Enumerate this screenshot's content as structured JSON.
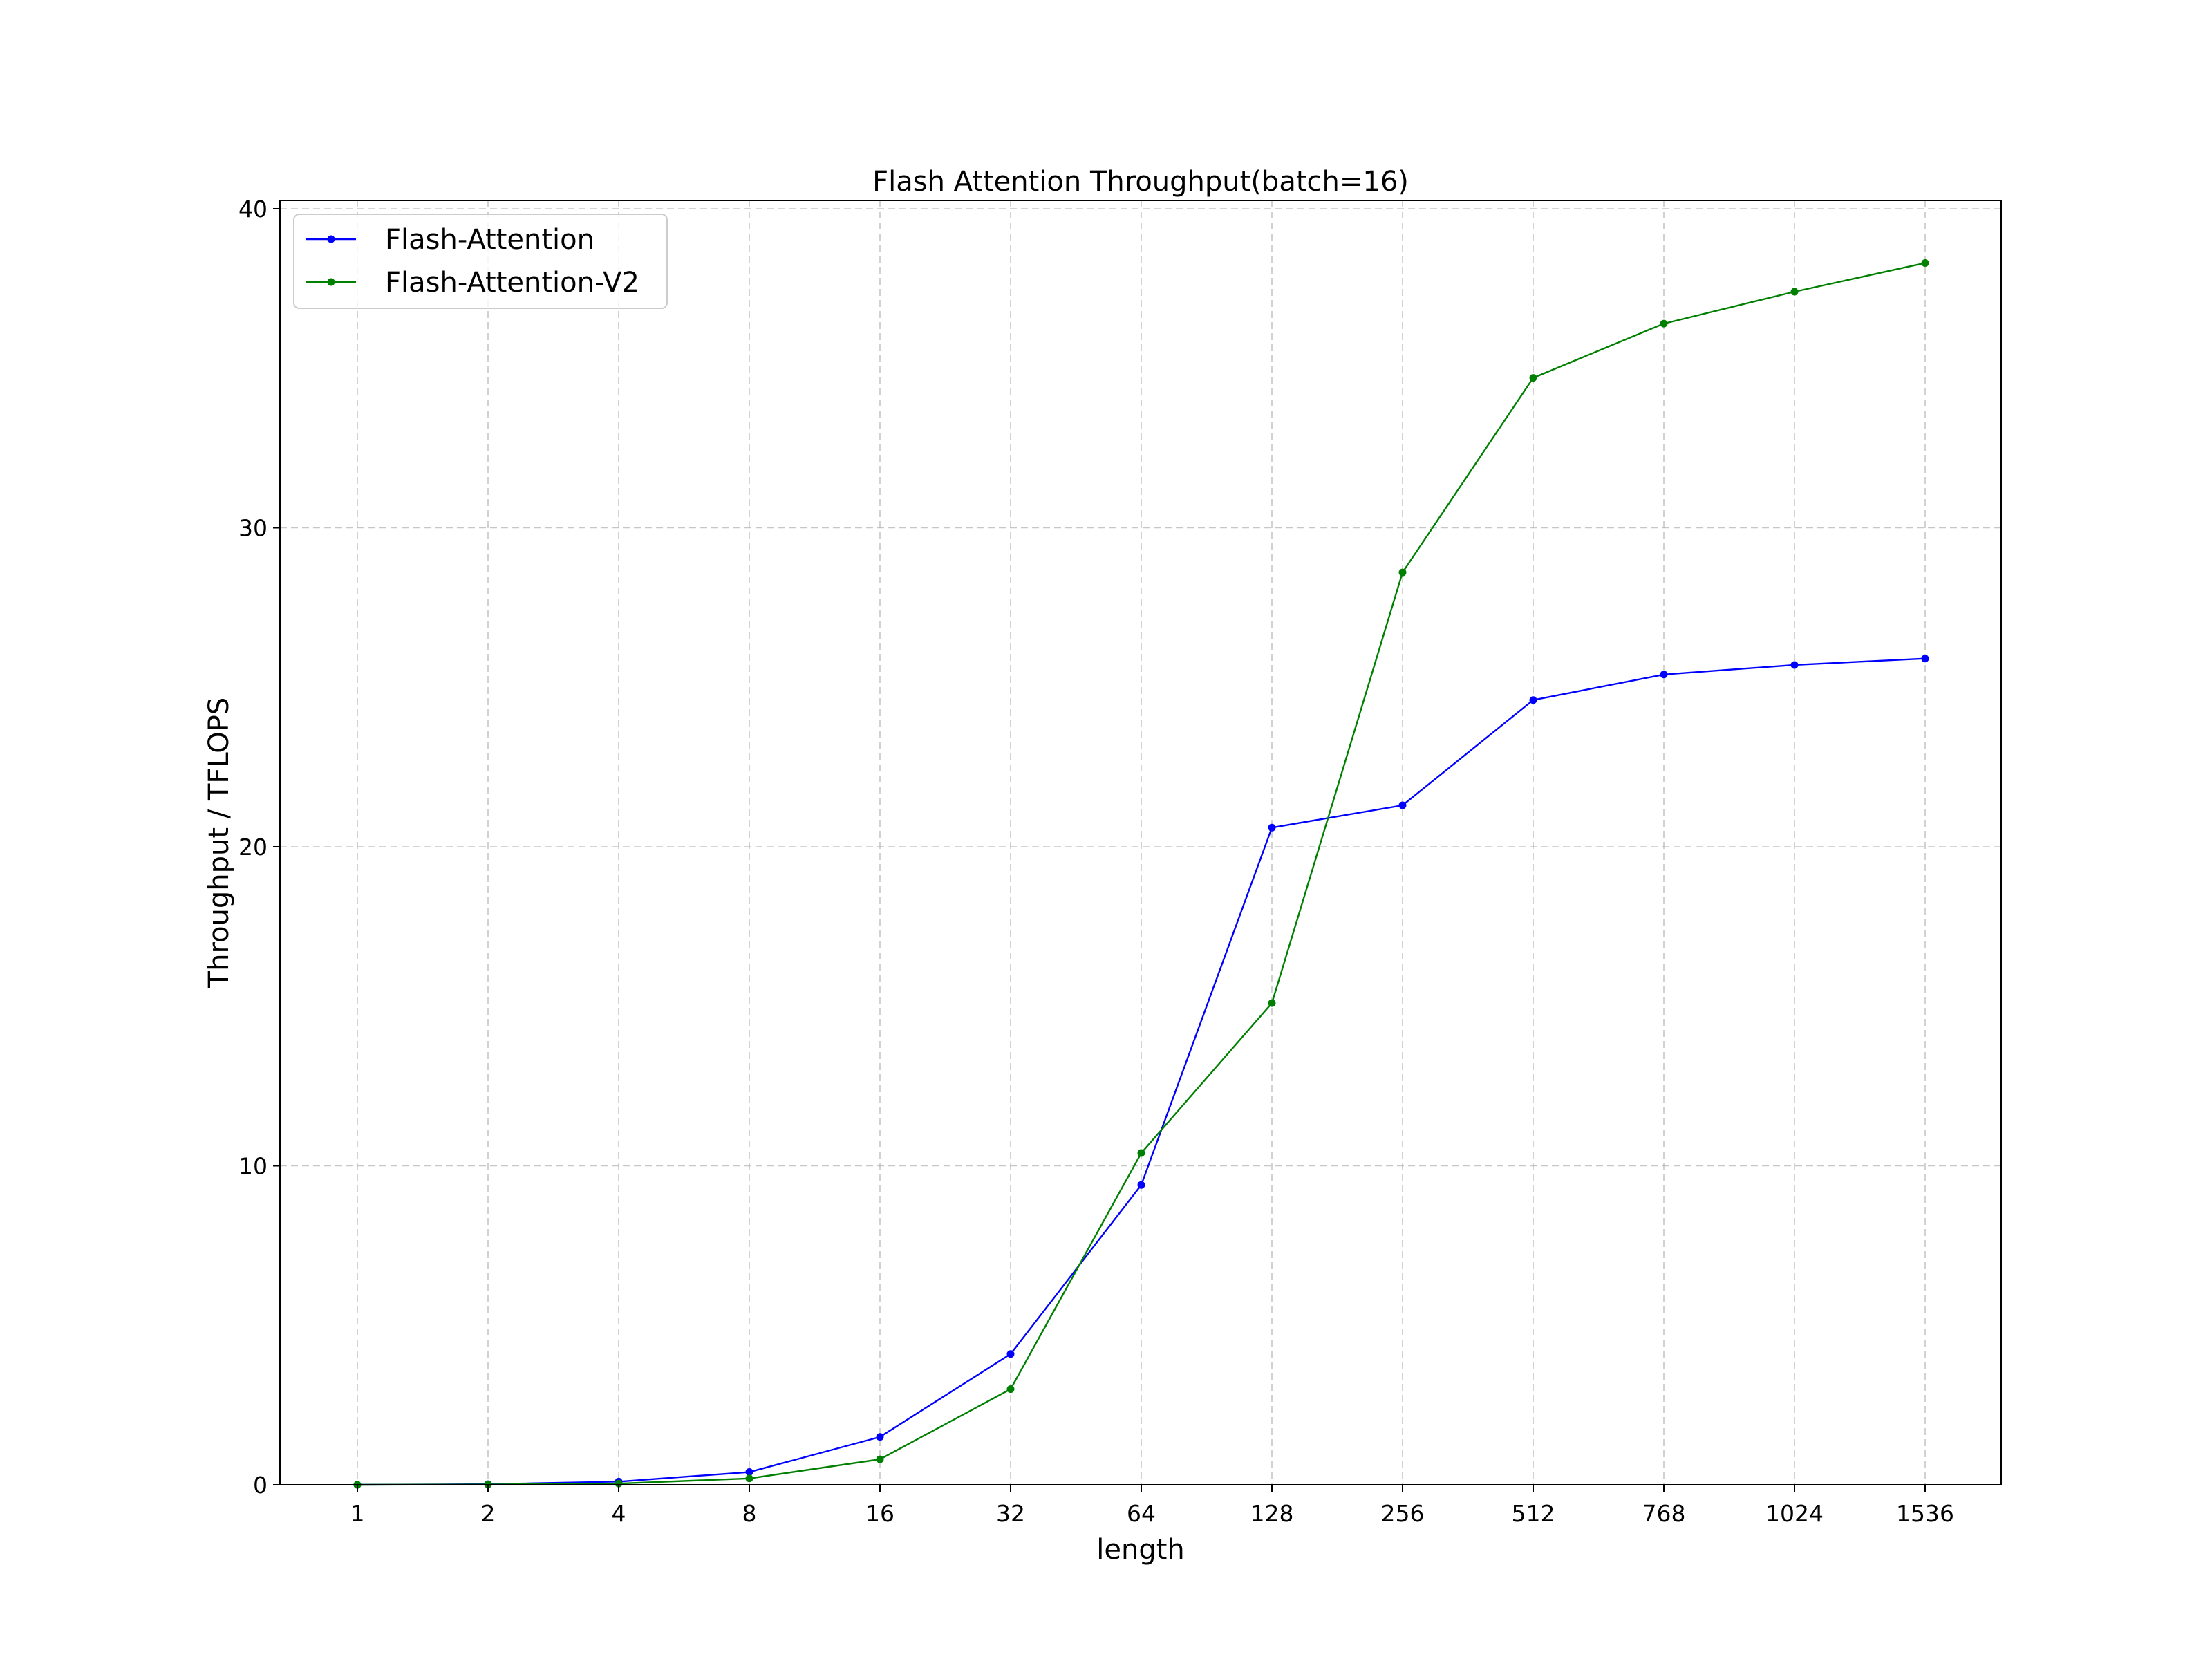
{
  "chart_data": {
    "type": "line",
    "title": "Flash Attention Throughput(batch=16)",
    "xlabel": "length",
    "ylabel": "Throughput / TFLOPS",
    "categories": [
      "1",
      "2",
      "4",
      "8",
      "16",
      "32",
      "64",
      "128",
      "256",
      "512",
      "768",
      "1024",
      "1536"
    ],
    "ylim": [
      0,
      40
    ],
    "yticks": [
      0,
      10,
      20,
      30,
      40
    ],
    "grid": true,
    "legend_position": "top-left",
    "series": [
      {
        "name": "Flash-Attention",
        "color": "#0000ff",
        "values": [
          0.0,
          0.02,
          0.1,
          0.4,
          1.5,
          4.1,
          9.4,
          20.6,
          21.3,
          24.6,
          25.4,
          25.7,
          25.9
        ]
      },
      {
        "name": "Flash-Attention-V2",
        "color": "#008000",
        "values": [
          0.0,
          0.01,
          0.04,
          0.2,
          0.8,
          3.0,
          10.4,
          15.1,
          28.6,
          34.7,
          36.4,
          37.4,
          38.3
        ]
      }
    ]
  }
}
